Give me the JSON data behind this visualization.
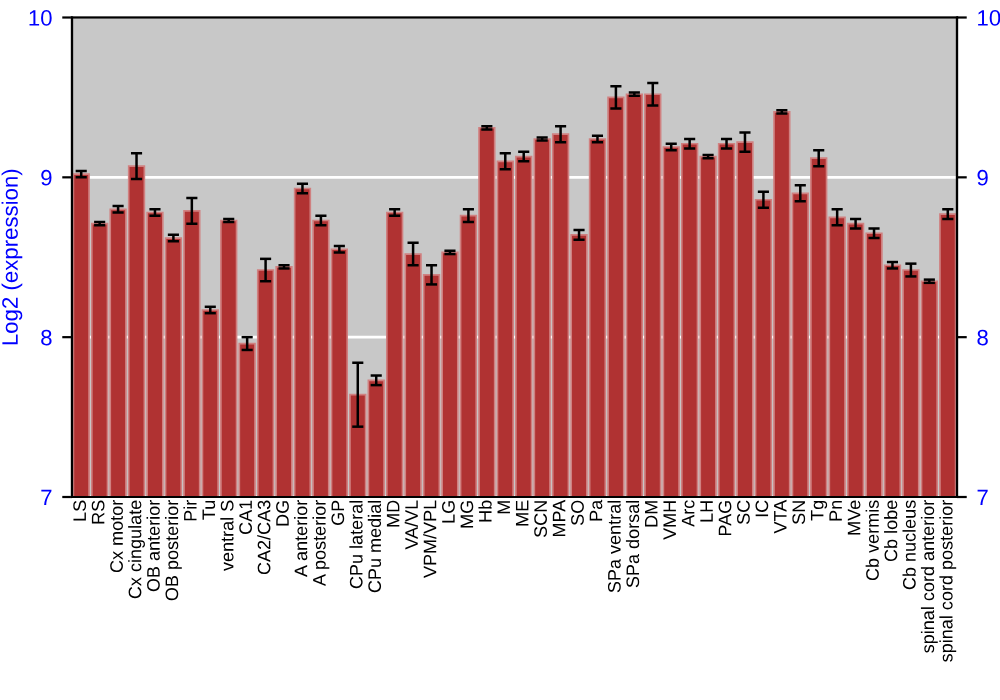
{
  "chart_data": {
    "type": "bar",
    "ylabel": "Log2 (expression)",
    "categories": [
      "LS",
      "RS",
      "Cx motor",
      "Cx cingulate",
      "OB anterior",
      "OB posterior",
      "Pir",
      "Tu",
      "ventral S",
      "CA1",
      "CA2/CA3",
      "DG",
      "A anterior",
      "A posterior",
      "GP",
      "CPu lateral",
      "CPu medial",
      "MD",
      "VA/VL",
      "VPM/VPL",
      "LG",
      "MG",
      "Hb",
      "M",
      "ME",
      "SCN",
      "MPA",
      "SO",
      "Pa",
      "SPa ventral",
      "SPa dorsal",
      "DM",
      "VMH",
      "Arc",
      "LH",
      "PAG",
      "SC",
      "IC",
      "VTA",
      "SN",
      "Tg",
      "Pn",
      "MVe",
      "Cb vermis",
      "Cb lobe",
      "Cb nucleus",
      "spinal cord anterior",
      "spinal cord posterior"
    ],
    "values": [
      9.02,
      8.71,
      8.8,
      9.07,
      8.78,
      8.62,
      8.79,
      8.17,
      8.73,
      7.96,
      8.42,
      8.44,
      8.93,
      8.73,
      8.55,
      7.64,
      7.73,
      8.78,
      8.52,
      8.39,
      8.53,
      8.76,
      9.31,
      9.1,
      9.13,
      9.24,
      9.27,
      8.64,
      9.24,
      9.5,
      9.52,
      9.52,
      9.19,
      9.21,
      9.13,
      9.21,
      9.22,
      8.86,
      9.41,
      8.9,
      9.12,
      8.75,
      8.71,
      8.65,
      8.45,
      8.42,
      8.35,
      8.77
    ],
    "errors": [
      0.02,
      0.01,
      0.02,
      0.08,
      0.02,
      0.02,
      0.08,
      0.02,
      0.01,
      0.04,
      0.07,
      0.01,
      0.03,
      0.03,
      0.02,
      0.2,
      0.03,
      0.02,
      0.07,
      0.06,
      0.01,
      0.04,
      0.01,
      0.05,
      0.03,
      0.01,
      0.05,
      0.03,
      0.02,
      0.07,
      0.01,
      0.07,
      0.02,
      0.03,
      0.01,
      0.03,
      0.06,
      0.05,
      0.01,
      0.05,
      0.05,
      0.05,
      0.03,
      0.03,
      0.02,
      0.04,
      0.01,
      0.03
    ],
    "color": "#b03232",
    "ylim": [
      7,
      10
    ],
    "yticks": [
      7,
      8,
      9,
      10
    ],
    "y2lim": [
      7,
      10
    ],
    "y2ticks": [
      7,
      8,
      9,
      10
    ],
    "grid": "y"
  }
}
